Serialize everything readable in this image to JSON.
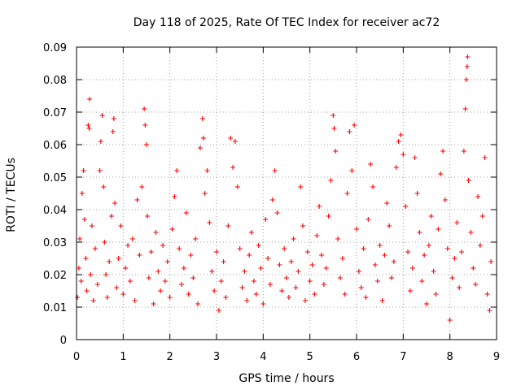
{
  "chart_data": {
    "type": "scatter",
    "title": "Day 118 of 2025, Rate Of TEC Index for receiver ac72",
    "xlabel": "GPS time / hours",
    "ylabel": "ROTI / TECUs",
    "xlim": [
      0,
      9
    ],
    "ylim": [
      0,
      0.09
    ],
    "x_ticks": [
      0,
      1,
      2,
      3,
      4,
      5,
      6,
      7,
      8,
      9
    ],
    "x_tick_labels": [
      "0",
      "1",
      "2",
      "3",
      "4",
      "5",
      "6",
      "7",
      "8",
      "9"
    ],
    "y_ticks": [
      0,
      0.01,
      0.02,
      0.03,
      0.04,
      0.05,
      0.06,
      0.07,
      0.08,
      0.09
    ],
    "y_tick_labels": [
      "0",
      "0.01",
      "0.02",
      "0.03",
      "0.04",
      "0.05",
      "0.06",
      "0.07",
      "0.08",
      "0.09"
    ],
    "grid": true,
    "marker": "plus",
    "series": [
      {
        "name": "ROTI",
        "color": "#ff0000",
        "points": [
          [
            0.02,
            0.013
          ],
          [
            0.05,
            0.022
          ],
          [
            0.07,
            0.031
          ],
          [
            0.1,
            0.018
          ],
          [
            0.12,
            0.045
          ],
          [
            0.15,
            0.052
          ],
          [
            0.17,
            0.037
          ],
          [
            0.2,
            0.025
          ],
          [
            0.22,
            0.015
          ],
          [
            0.25,
            0.066
          ],
          [
            0.27,
            0.065
          ],
          [
            0.28,
            0.074
          ],
          [
            0.3,
            0.02
          ],
          [
            0.33,
            0.035
          ],
          [
            0.36,
            0.012
          ],
          [
            0.4,
            0.028
          ],
          [
            0.45,
            0.017
          ],
          [
            0.5,
            0.052
          ],
          [
            0.52,
            0.061
          ],
          [
            0.55,
            0.069
          ],
          [
            0.58,
            0.047
          ],
          [
            0.6,
            0.03
          ],
          [
            0.63,
            0.02
          ],
          [
            0.66,
            0.013
          ],
          [
            0.7,
            0.024
          ],
          [
            0.75,
            0.038
          ],
          [
            0.78,
            0.064
          ],
          [
            0.8,
            0.068
          ],
          [
            0.82,
            0.042
          ],
          [
            0.86,
            0.016
          ],
          [
            0.9,
            0.025
          ],
          [
            0.95,
            0.035
          ],
          [
            1.0,
            0.014
          ],
          [
            1.05,
            0.022
          ],
          [
            1.1,
            0.029
          ],
          [
            1.15,
            0.018
          ],
          [
            1.2,
            0.031
          ],
          [
            1.25,
            0.012
          ],
          [
            1.3,
            0.043
          ],
          [
            1.35,
            0.026
          ],
          [
            1.4,
            0.047
          ],
          [
            1.45,
            0.071
          ],
          [
            1.47,
            0.066
          ],
          [
            1.5,
            0.06
          ],
          [
            1.52,
            0.038
          ],
          [
            1.55,
            0.019
          ],
          [
            1.6,
            0.027
          ],
          [
            1.65,
            0.011
          ],
          [
            1.7,
            0.033
          ],
          [
            1.75,
            0.021
          ],
          [
            1.8,
            0.015
          ],
          [
            1.85,
            0.029
          ],
          [
            1.9,
            0.018
          ],
          [
            1.95,
            0.024
          ],
          [
            2.0,
            0.013
          ],
          [
            2.05,
            0.034
          ],
          [
            2.1,
            0.044
          ],
          [
            2.15,
            0.052
          ],
          [
            2.2,
            0.028
          ],
          [
            2.25,
            0.017
          ],
          [
            2.3,
            0.022
          ],
          [
            2.35,
            0.039
          ],
          [
            2.4,
            0.014
          ],
          [
            2.45,
            0.026
          ],
          [
            2.5,
            0.019
          ],
          [
            2.55,
            0.031
          ],
          [
            2.6,
            0.011
          ],
          [
            2.65,
            0.059
          ],
          [
            2.7,
            0.068
          ],
          [
            2.72,
            0.062
          ],
          [
            2.75,
            0.045
          ],
          [
            2.8,
            0.052
          ],
          [
            2.85,
            0.036
          ],
          [
            2.9,
            0.021
          ],
          [
            2.95,
            0.015
          ],
          [
            3.0,
            0.027
          ],
          [
            3.05,
            0.009
          ],
          [
            3.1,
            0.018
          ],
          [
            3.15,
            0.024
          ],
          [
            3.2,
            0.013
          ],
          [
            3.25,
            0.035
          ],
          [
            3.3,
            0.062
          ],
          [
            3.35,
            0.053
          ],
          [
            3.4,
            0.061
          ],
          [
            3.45,
            0.047
          ],
          [
            3.5,
            0.028
          ],
          [
            3.55,
            0.016
          ],
          [
            3.6,
            0.021
          ],
          [
            3.65,
            0.012
          ],
          [
            3.7,
            0.026
          ],
          [
            3.75,
            0.033
          ],
          [
            3.8,
            0.018
          ],
          [
            3.85,
            0.014
          ],
          [
            3.9,
            0.029
          ],
          [
            3.95,
            0.022
          ],
          [
            4.0,
            0.011
          ],
          [
            4.05,
            0.037
          ],
          [
            4.1,
            0.025
          ],
          [
            4.15,
            0.017
          ],
          [
            4.2,
            0.043
          ],
          [
            4.25,
            0.052
          ],
          [
            4.3,
            0.039
          ],
          [
            4.35,
            0.023
          ],
          [
            4.4,
            0.015
          ],
          [
            4.45,
            0.028
          ],
          [
            4.5,
            0.019
          ],
          [
            4.55,
            0.013
          ],
          [
            4.6,
            0.024
          ],
          [
            4.65,
            0.031
          ],
          [
            4.7,
            0.016
          ],
          [
            4.75,
            0.021
          ],
          [
            4.8,
            0.047
          ],
          [
            4.85,
            0.035
          ],
          [
            4.9,
            0.012
          ],
          [
            4.95,
            0.027
          ],
          [
            5.0,
            0.018
          ],
          [
            5.05,
            0.023
          ],
          [
            5.1,
            0.014
          ],
          [
            5.15,
            0.032
          ],
          [
            5.2,
            0.041
          ],
          [
            5.25,
            0.026
          ],
          [
            5.3,
            0.017
          ],
          [
            5.35,
            0.022
          ],
          [
            5.4,
            0.038
          ],
          [
            5.45,
            0.049
          ],
          [
            5.5,
            0.069
          ],
          [
            5.52,
            0.065
          ],
          [
            5.55,
            0.058
          ],
          [
            5.6,
            0.031
          ],
          [
            5.65,
            0.019
          ],
          [
            5.7,
            0.025
          ],
          [
            5.75,
            0.014
          ],
          [
            5.8,
            0.045
          ],
          [
            5.85,
            0.064
          ],
          [
            5.9,
            0.052
          ],
          [
            5.95,
            0.066
          ],
          [
            6.0,
            0.034
          ],
          [
            6.05,
            0.021
          ],
          [
            6.1,
            0.016
          ],
          [
            6.15,
            0.028
          ],
          [
            6.2,
            0.013
          ],
          [
            6.25,
            0.037
          ],
          [
            6.3,
            0.054
          ],
          [
            6.35,
            0.047
          ],
          [
            6.4,
            0.023
          ],
          [
            6.45,
            0.018
          ],
          [
            6.5,
            0.029
          ],
          [
            6.55,
            0.012
          ],
          [
            6.6,
            0.026
          ],
          [
            6.65,
            0.042
          ],
          [
            6.7,
            0.035
          ],
          [
            6.75,
            0.019
          ],
          [
            6.8,
            0.024
          ],
          [
            6.85,
            0.053
          ],
          [
            6.9,
            0.061
          ],
          [
            6.95,
            0.063
          ],
          [
            7.0,
            0.057
          ],
          [
            7.05,
            0.041
          ],
          [
            7.1,
            0.027
          ],
          [
            7.15,
            0.015
          ],
          [
            7.2,
            0.022
          ],
          [
            7.25,
            0.056
          ],
          [
            7.3,
            0.045
          ],
          [
            7.35,
            0.033
          ],
          [
            7.4,
            0.018
          ],
          [
            7.45,
            0.026
          ],
          [
            7.5,
            0.011
          ],
          [
            7.55,
            0.029
          ],
          [
            7.6,
            0.038
          ],
          [
            7.65,
            0.021
          ],
          [
            7.7,
            0.014
          ],
          [
            7.75,
            0.034
          ],
          [
            7.8,
            0.051
          ],
          [
            7.85,
            0.058
          ],
          [
            7.9,
            0.043
          ],
          [
            7.95,
            0.028
          ],
          [
            8.0,
            0.006
          ],
          [
            8.05,
            0.019
          ],
          [
            8.1,
            0.025
          ],
          [
            8.15,
            0.036
          ],
          [
            8.2,
            0.016
          ],
          [
            8.25,
            0.027
          ],
          [
            8.3,
            0.058
          ],
          [
            8.33,
            0.071
          ],
          [
            8.35,
            0.08
          ],
          [
            8.37,
            0.084
          ],
          [
            8.38,
            0.087
          ],
          [
            8.4,
            0.049
          ],
          [
            8.45,
            0.033
          ],
          [
            8.5,
            0.022
          ],
          [
            8.55,
            0.017
          ],
          [
            8.6,
            0.044
          ],
          [
            8.65,
            0.029
          ],
          [
            8.7,
            0.038
          ],
          [
            8.75,
            0.056
          ],
          [
            8.8,
            0.014
          ],
          [
            8.85,
            0.009
          ],
          [
            8.88,
            0.024
          ]
        ]
      }
    ]
  }
}
